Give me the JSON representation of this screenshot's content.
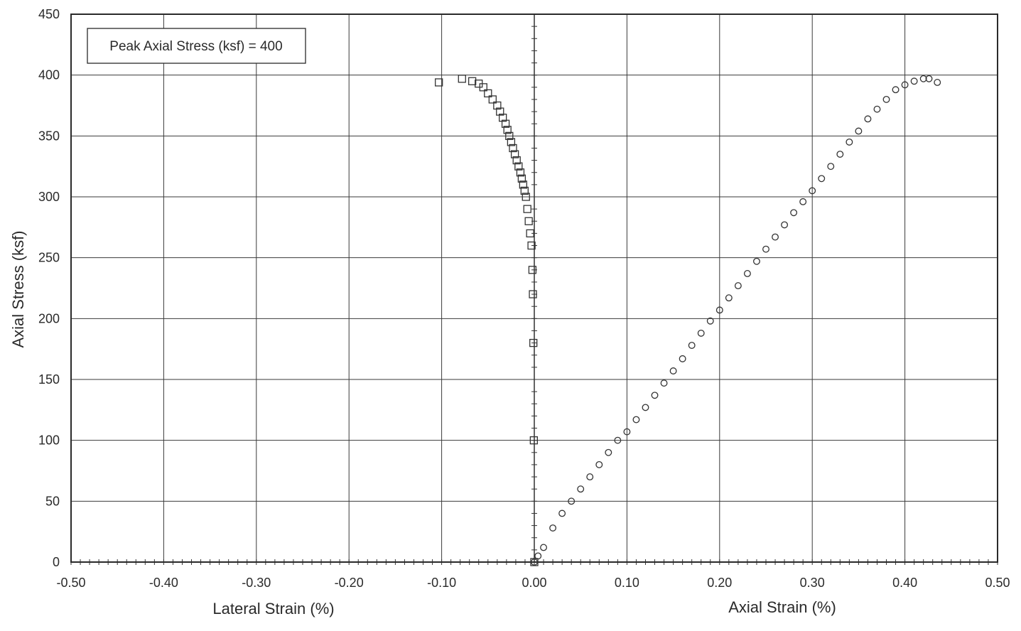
{
  "chart_data": {
    "type": "scatter",
    "title": "",
    "xlim": [
      -0.5,
      0.5
    ],
    "ylim": [
      0,
      450
    ],
    "x_ticks": [
      "-0.50",
      "-0.40",
      "-0.30",
      "-0.20",
      "-0.10",
      "0.00",
      "0.10",
      "0.20",
      "0.30",
      "0.40",
      "0.50"
    ],
    "x_tick_values": [
      -0.5,
      -0.4,
      -0.3,
      -0.2,
      -0.1,
      0.0,
      0.1,
      0.2,
      0.3,
      0.4,
      0.5
    ],
    "y_ticks": [
      "0",
      "50",
      "100",
      "150",
      "200",
      "250",
      "300",
      "350",
      "400",
      "450"
    ],
    "y_tick_values": [
      0,
      50,
      100,
      150,
      200,
      250,
      300,
      350,
      400,
      450
    ],
    "ylabel": "Axial Stress (ksf)",
    "xlabel_left": "Lateral Strain (%)",
    "xlabel_right": "Axial Strain (%)",
    "annotation": "Peak Axial Stress (ksf) = 400",
    "grid": true,
    "series": [
      {
        "marker": "square",
        "x": [
          0.0,
          -0.0005,
          -0.001,
          -0.0015,
          -0.002,
          -0.003,
          -0.0045,
          -0.006,
          -0.0075,
          -0.009,
          -0.0105,
          -0.012,
          -0.0135,
          -0.015,
          -0.017,
          -0.019,
          -0.021,
          -0.023,
          -0.025,
          -0.027,
          -0.029,
          -0.031,
          -0.034,
          -0.037,
          -0.04,
          -0.045,
          -0.05,
          -0.055,
          -0.06,
          -0.067,
          -0.078,
          -0.103
        ],
        "y": [
          0,
          100,
          180,
          220,
          240,
          260,
          270,
          280,
          290,
          300,
          305,
          310,
          315,
          320,
          325,
          330,
          335,
          340,
          345,
          350,
          355,
          360,
          365,
          370,
          375,
          380,
          385,
          390,
          393,
          395,
          397,
          394
        ]
      },
      {
        "marker": "circle",
        "x": [
          0.0,
          0.004,
          0.01,
          0.02,
          0.03,
          0.04,
          0.05,
          0.06,
          0.07,
          0.08,
          0.09,
          0.1,
          0.11,
          0.12,
          0.13,
          0.14,
          0.15,
          0.16,
          0.17,
          0.18,
          0.19,
          0.2,
          0.21,
          0.22,
          0.23,
          0.24,
          0.25,
          0.26,
          0.27,
          0.28,
          0.29,
          0.3,
          0.31,
          0.32,
          0.33,
          0.34,
          0.35,
          0.36,
          0.37,
          0.38,
          0.39,
          0.4,
          0.41,
          0.42,
          0.426,
          0.435
        ],
        "y": [
          0,
          5,
          12,
          28,
          40,
          50,
          60,
          70,
          80,
          90,
          100,
          107,
          117,
          127,
          137,
          147,
          157,
          167,
          178,
          188,
          198,
          207,
          217,
          227,
          237,
          247,
          257,
          267,
          277,
          287,
          296,
          305,
          315,
          325,
          335,
          345,
          354,
          364,
          372,
          380,
          388,
          392,
          395,
          397,
          397,
          394
        ]
      }
    ]
  }
}
